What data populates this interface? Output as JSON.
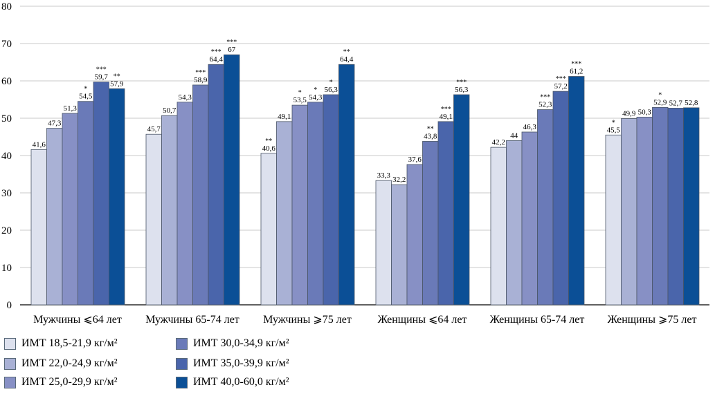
{
  "chart_data": {
    "type": "bar",
    "ylim": [
      0,
      80
    ],
    "yticks": [
      0,
      10,
      20,
      30,
      40,
      50,
      60,
      70,
      80
    ],
    "grid": true,
    "legend_position": "bottom",
    "categories": [
      "Мужчины ⩽64 лет",
      "Мужчины 65-74 лет",
      "Мужчины ⩾75 лет",
      "Женщины ⩽64 лет",
      "Женщины 65-74 лет",
      "Женщины ⩾75 лет"
    ],
    "series": [
      {
        "name": "ИМТ 18,5-21,9 кг/м²",
        "color": "#dde1ee",
        "values": [
          41.6,
          45.7,
          40.6,
          33.3,
          42.2,
          45.5
        ],
        "labels": [
          "41,6",
          "45,7",
          "40,6",
          "33,3",
          "42,2",
          "45,5"
        ],
        "sig": [
          "",
          "",
          "**",
          "",
          "",
          "*"
        ]
      },
      {
        "name": "ИМТ 22,0-24,9 кг/м²",
        "color": "#a9b1d5",
        "values": [
          47.3,
          50.7,
          49.1,
          32.2,
          44.0,
          49.9
        ],
        "labels": [
          "47,3",
          "50,7",
          "49,1",
          "32,2",
          "44",
          "49,9"
        ],
        "sig": [
          "",
          "",
          "",
          "",
          "",
          ""
        ]
      },
      {
        "name": "ИМТ 25,0-29,9 кг/м²",
        "color": "#8790c5",
        "values": [
          51.3,
          54.3,
          53.5,
          37.6,
          46.3,
          50.3
        ],
        "labels": [
          "51,3",
          "54,3",
          "53,5",
          "37,6",
          "46,3",
          "50,3"
        ],
        "sig": [
          "",
          "",
          "*",
          "",
          "",
          ""
        ]
      },
      {
        "name": "ИМТ 30,0-34,9 кг/м²",
        "color": "#6a7ab8",
        "values": [
          54.5,
          58.9,
          54.3,
          43.8,
          52.3,
          52.9
        ],
        "labels": [
          "54,5",
          "58,9",
          "54,3",
          "43,8",
          "52,3",
          "52,9"
        ],
        "sig": [
          "*",
          "***",
          "*",
          "**",
          "***",
          "*"
        ]
      },
      {
        "name": "ИМТ 35,0-39,9 кг/м²",
        "color": "#4a65ab",
        "values": [
          59.7,
          64.4,
          56.3,
          49.1,
          57.2,
          52.7
        ],
        "labels": [
          "59,7",
          "64,4",
          "56,3",
          "49,1",
          "57,2",
          "52,7"
        ],
        "sig": [
          "***",
          "***",
          "*",
          "***",
          "***",
          ""
        ]
      },
      {
        "name": "ИМТ 40,0-60,0 кг/м²",
        "color": "#0b4f96",
        "values": [
          57.9,
          67.0,
          64.4,
          56.3,
          61.2,
          52.8
        ],
        "labels": [
          "57,9",
          "67",
          "64,4",
          "56,3",
          "61,2",
          "52,8"
        ],
        "sig": [
          "**",
          "***",
          "**",
          "***",
          "***",
          ""
        ]
      }
    ]
  }
}
